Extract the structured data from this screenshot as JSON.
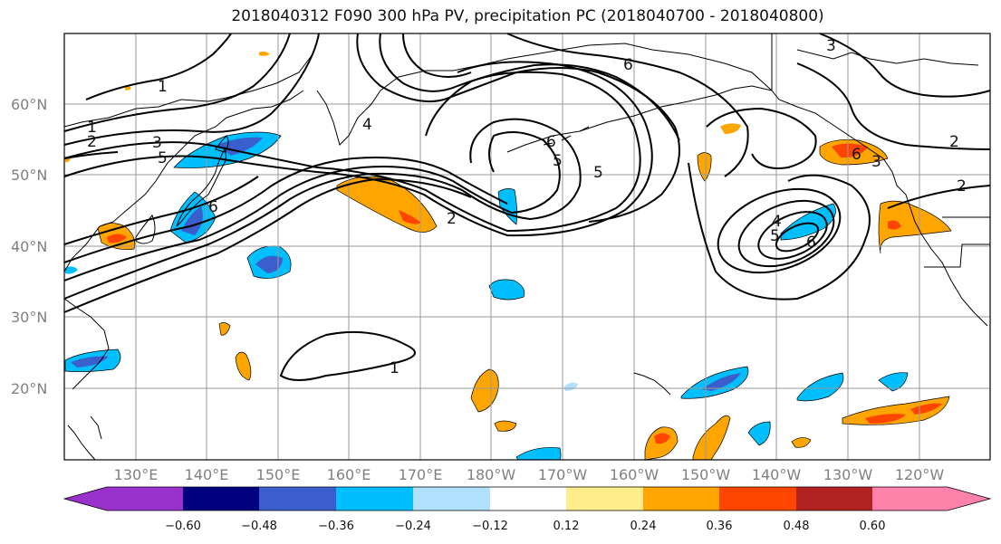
{
  "title": "2018040312 F090 300 hPa PV, precipitation PC (2018040700 - 2018040800)",
  "map": {
    "lat_labels": [
      "60°N",
      "50°N",
      "40°N",
      "30°N",
      "20°N"
    ],
    "lon_labels": [
      "130°E",
      "140°E",
      "150°E",
      "160°E",
      "170°E",
      "180°W",
      "170°W",
      "160°W",
      "150°W",
      "140°W",
      "130°W",
      "120°W"
    ],
    "contour_labels": [
      "1",
      "1",
      "2",
      "3",
      "5",
      "6",
      "6",
      "6",
      "5",
      "5",
      "4",
      "3",
      "2",
      "2",
      "6",
      "4",
      "5",
      "6",
      "3",
      "2",
      "1"
    ]
  },
  "colorbar": {
    "ticks": [
      "−0.60",
      "−0.48",
      "−0.36",
      "−0.24",
      "−0.12",
      "0.12",
      "0.24",
      "0.36",
      "0.48",
      "0.60"
    ],
    "colors": [
      "#9932cc",
      "#000080",
      "#3a5fcd",
      "#00bfff",
      "#b0e2ff",
      "#ffffff",
      "#ffec8b",
      "#ffa500",
      "#ff4500",
      "#b22222",
      "#ff82ab"
    ]
  }
}
